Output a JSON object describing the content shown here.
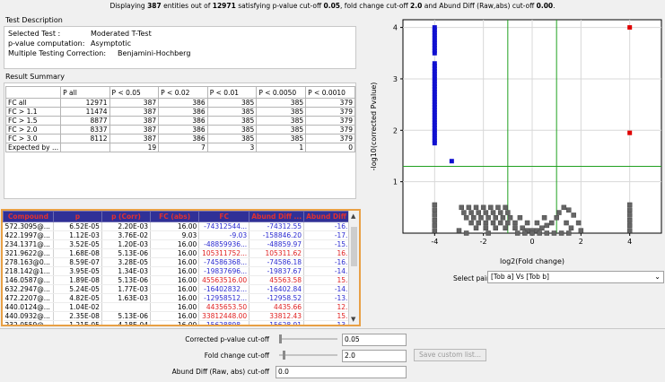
{
  "status": {
    "parts": [
      "Displaying ",
      "387",
      " entities out of ",
      "12971",
      " satisfying p-value cut-off ",
      "0.05",
      ", fold change cut-off ",
      "2.0",
      " and Abund Diff (Raw,abs) cut-off ",
      "0.00",
      "."
    ]
  },
  "test_description": {
    "title": "Test Description",
    "rows": [
      {
        "label": "Selected Test :",
        "value": "Moderated T-Test"
      },
      {
        "label": "p-value computation:",
        "value": "Asymptotic"
      },
      {
        "label": "Multiple Testing Correction:",
        "value": "Benjamini-Hochberg"
      }
    ]
  },
  "result_summary": {
    "title": "Result Summary",
    "headers": [
      "",
      "P all",
      "P < 0.05",
      "P < 0.02",
      "P < 0.01",
      "P < 0.0050",
      "P < 0.0010"
    ],
    "rows": [
      [
        "FC all",
        "12971",
        "387",
        "386",
        "385",
        "385",
        "379"
      ],
      [
        "FC > 1.1",
        "11474",
        "387",
        "386",
        "385",
        "385",
        "379"
      ],
      [
        "FC > 1.5",
        "8877",
        "387",
        "386",
        "385",
        "385",
        "379"
      ],
      [
        "FC > 2.0",
        "8337",
        "387",
        "386",
        "385",
        "385",
        "379"
      ],
      [
        "FC > 3.0",
        "8112",
        "387",
        "386",
        "385",
        "385",
        "379"
      ],
      [
        "Expected by ...",
        "",
        "19",
        "7",
        "3",
        "1",
        "0"
      ]
    ]
  },
  "entities": {
    "headers": [
      "Compound",
      "p",
      "p (Corr)",
      "FC (abs)",
      "FC",
      "Abund Diff ...",
      "Abund Diff ..."
    ],
    "rows": [
      {
        "cells": [
          "572.3095@...",
          "6.52E-05",
          "2.20E-03",
          "16.00",
          "-74312544...",
          "-74312.55",
          "-16.18"
        ],
        "sign": "neg"
      },
      {
        "cells": [
          "422.1997@...",
          "1.12E-03",
          "3.76E-02",
          "9.03",
          "-9.03",
          "-158846.20",
          "-17.28"
        ],
        "sign": "neg"
      },
      {
        "cells": [
          "234.1371@...",
          "3.52E-05",
          "1.20E-03",
          "16.00",
          "-48859936...",
          "-48859.97",
          "-15.58"
        ],
        "sign": "neg"
      },
      {
        "cells": [
          "321.9622@...",
          "1.68E-08",
          "5.13E-06",
          "16.00",
          "105311752...",
          "105311.62",
          "16.68"
        ],
        "sign": "pos"
      },
      {
        "cells": [
          "278.163@0...",
          "8.59E-07",
          "3.28E-05",
          "16.00",
          "-74586368...",
          "-74586.18",
          "-16.19"
        ],
        "sign": "neg"
      },
      {
        "cells": [
          "218.142@1...",
          "3.95E-05",
          "1.34E-03",
          "16.00",
          "-19837696...",
          "-19837.67",
          "-14.28"
        ],
        "sign": "neg"
      },
      {
        "cells": [
          "146.0587@...",
          "1.89E-08",
          "5.13E-06",
          "16.00",
          "45563516.00",
          "45563.58",
          "15.48"
        ],
        "sign": "pos"
      },
      {
        "cells": [
          "632.2947@...",
          "5.24E-05",
          "1.77E-03",
          "16.00",
          "-16402832...",
          "-16402.84",
          "-14.00"
        ],
        "sign": "neg"
      },
      {
        "cells": [
          "472.2207@...",
          "4.82E-05",
          "1.63E-03",
          "16.00",
          "-12958512...",
          "-12958.52",
          "-13.66"
        ],
        "sign": "neg"
      },
      {
        "cells": [
          "440.0124@...",
          "1.04E-02",
          "",
          "16.00",
          "4435653.50",
          "4435.66",
          "12.11"
        ],
        "sign": "pos"
      },
      {
        "cells": [
          "440.0932@...",
          "2.35E-08",
          "5.13E-06",
          "16.00",
          "33812448.00",
          "33812.43",
          "15.05"
        ],
        "sign": "pos"
      },
      {
        "cells": [
          "232.0559@...",
          "1.21E-05",
          "4.18E-04",
          "16.00",
          "-15628898...",
          "-15628.91",
          "-13.93"
        ],
        "sign": "neg"
      }
    ]
  },
  "volcano": {
    "x_label": "log2(Fold change)",
    "y_label": "-log10(corrected Pvalue)",
    "x_ticks": [
      "-4",
      "-2",
      "0",
      "2",
      "4"
    ],
    "y_ticks": [
      "1",
      "2",
      "3",
      "4"
    ],
    "xlim": [
      -5.3,
      5.3
    ],
    "ylim": [
      0,
      4.15
    ],
    "fc_cutoff": 1,
    "p_cutoff_line": 1.3,
    "colors": {
      "up": "#e00000",
      "down": "#1010d0",
      "ns": "#666666",
      "line": "#20a020"
    }
  },
  "chart_data": {
    "type": "scatter",
    "xlabel": "log2(Fold change)",
    "ylabel": "-log10(corrected Pvalue)",
    "xlim": [
      -5.3,
      5.3
    ],
    "ylim": [
      0,
      4.15
    ],
    "series": [
      {
        "color": "#1010d0",
        "points": [
          [
            -4,
            4.0
          ],
          [
            -4,
            3.95
          ],
          [
            -4,
            3.9
          ],
          [
            -4,
            3.85
          ],
          [
            -4,
            3.8
          ],
          [
            -4,
            3.75
          ],
          [
            -4,
            3.7
          ],
          [
            -4,
            3.65
          ],
          [
            -4,
            3.6
          ],
          [
            -4,
            3.55
          ],
          [
            -4,
            3.5
          ],
          [
            -4,
            3.3
          ],
          [
            -4,
            3.25
          ],
          [
            -4,
            3.2
          ],
          [
            -4,
            3.15
          ],
          [
            -4,
            3.1
          ],
          [
            -4,
            3.05
          ],
          [
            -4,
            3.0
          ],
          [
            -4,
            2.95
          ],
          [
            -4,
            2.9
          ],
          [
            -4,
            2.85
          ],
          [
            -4,
            2.8
          ],
          [
            -4,
            2.75
          ],
          [
            -4,
            2.7
          ],
          [
            -4,
            2.65
          ],
          [
            -4,
            2.6
          ],
          [
            -4,
            2.55
          ],
          [
            -4,
            2.5
          ],
          [
            -4,
            2.45
          ],
          [
            -4,
            2.4
          ],
          [
            -4,
            2.35
          ],
          [
            -4,
            2.3
          ],
          [
            -4,
            2.25
          ],
          [
            -4,
            2.2
          ],
          [
            -4,
            2.15
          ],
          [
            -4,
            2.1
          ],
          [
            -4,
            2.05
          ],
          [
            -4,
            2.0
          ],
          [
            -4,
            1.95
          ],
          [
            -4,
            1.9
          ],
          [
            -4,
            1.85
          ],
          [
            -4,
            1.8
          ],
          [
            -4,
            1.75
          ],
          [
            -3.3,
            1.4
          ]
        ]
      },
      {
        "color": "#e00000",
        "points": [
          [
            4,
            4.0
          ],
          [
            4,
            1.95
          ]
        ]
      },
      {
        "color": "#666666",
        "points": [
          [
            -4,
            0.55
          ],
          [
            -4,
            0.45
          ],
          [
            -4,
            0.35
          ],
          [
            -4,
            0.25
          ],
          [
            -4,
            0.15
          ],
          [
            -4,
            0.05
          ],
          [
            4,
            0.55
          ],
          [
            4,
            0.45
          ],
          [
            4,
            0.35
          ],
          [
            4,
            0.25
          ],
          [
            4,
            0.15
          ],
          [
            4,
            0.05
          ],
          [
            -2.9,
            0.5
          ],
          [
            -2.6,
            0.5
          ],
          [
            -2.3,
            0.5
          ],
          [
            -2.0,
            0.5
          ],
          [
            -1.7,
            0.5
          ],
          [
            -1.4,
            0.5
          ],
          [
            -1.1,
            0.5
          ],
          [
            -2.8,
            0.4
          ],
          [
            -2.5,
            0.4
          ],
          [
            -2.2,
            0.4
          ],
          [
            -1.9,
            0.4
          ],
          [
            -1.6,
            0.4
          ],
          [
            -1.3,
            0.4
          ],
          [
            -1.0,
            0.4
          ],
          [
            -2.7,
            0.3
          ],
          [
            -2.4,
            0.3
          ],
          [
            -2.1,
            0.3
          ],
          [
            -1.8,
            0.3
          ],
          [
            -1.5,
            0.3
          ],
          [
            -1.2,
            0.3
          ],
          [
            -0.9,
            0.3
          ],
          [
            -2.5,
            0.2
          ],
          [
            -2.2,
            0.2
          ],
          [
            -1.9,
            0.2
          ],
          [
            -1.6,
            0.2
          ],
          [
            -1.3,
            0.2
          ],
          [
            -1.0,
            0.2
          ],
          [
            -0.7,
            0.2
          ],
          [
            -2.3,
            0.1
          ],
          [
            -1.9,
            0.1
          ],
          [
            -1.5,
            0.1
          ],
          [
            -1.1,
            0.1
          ],
          [
            -0.7,
            0.1
          ],
          [
            -0.4,
            0.1
          ],
          [
            -0.2,
            0.05
          ],
          [
            0.0,
            0.05
          ],
          [
            0.2,
            0.05
          ],
          [
            0.4,
            0.1
          ],
          [
            0.6,
            0.15
          ],
          [
            0.8,
            0.2
          ],
          [
            1.0,
            0.3
          ],
          [
            -0.6,
            0.0
          ],
          [
            -0.3,
            0.0
          ],
          [
            0.0,
            0.0
          ],
          [
            0.3,
            0.0
          ],
          [
            0.6,
            0.0
          ],
          [
            0.9,
            0.0
          ],
          [
            1.2,
            0.0
          ],
          [
            1.5,
            0.0
          ],
          [
            1.1,
            0.4
          ],
          [
            1.3,
            0.5
          ],
          [
            1.5,
            0.45
          ],
          [
            1.7,
            0.35
          ],
          [
            1.4,
            0.2
          ],
          [
            1.6,
            0.1
          ],
          [
            0.5,
            0.3
          ],
          [
            -0.5,
            0.3
          ],
          [
            0.2,
            0.2
          ],
          [
            -0.2,
            0.2
          ],
          [
            -3.0,
            0.05
          ],
          [
            -2.7,
            0.0
          ],
          [
            -1.8,
            0.0
          ],
          [
            2.0,
            0.05
          ],
          [
            1.9,
            0.2
          ]
        ]
      }
    ]
  },
  "select_pair": {
    "label": "Select pair",
    "value": "[Tob a] Vs [Tob b]"
  },
  "controls": {
    "pvalue_label": "Corrected p-value cut-off",
    "pvalue_value": "0.05",
    "fc_label": "Fold change cut-off",
    "fc_value": "2.0",
    "abund_label": "Abund Diff (Raw, abs) cut-off",
    "abund_value": "0.0",
    "save_label": "Save custom list..."
  }
}
